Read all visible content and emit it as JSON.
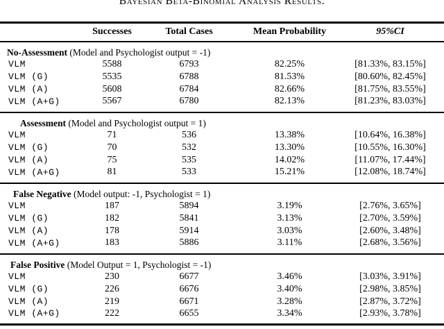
{
  "title": "Bayesian Beta-Binomial Analysis Results.",
  "columns": [
    "Successes",
    "Total Cases",
    "Mean Probability",
    "95%CI"
  ],
  "sections": [
    {
      "name": "No-Assessment",
      "condition": "(Model and Psychologist output = -1)",
      "rows": [
        {
          "model": "VLM",
          "successes": "5588",
          "total": "6793",
          "mean": "82.25%",
          "ci": "[81.33%, 83.15%]"
        },
        {
          "model": "VLM (G)",
          "successes": "5535",
          "total": "6788",
          "mean": "81.53%",
          "ci": "[80.60%, 82.45%]"
        },
        {
          "model": "VLM (A)",
          "successes": "5608",
          "total": "6784",
          "mean": "82.66%",
          "ci": "[81.75%, 83.55%]"
        },
        {
          "model": "VLM (A+G)",
          "successes": "5567",
          "total": "6780",
          "mean": "82.13%",
          "ci": "[81.23%, 83.03%]"
        }
      ]
    },
    {
      "name": "Assessment",
      "condition": "(Model and Psychologist output = 1)",
      "rows": [
        {
          "model": "VLM",
          "successes": "71",
          "total": "536",
          "mean": "13.38%",
          "ci": "[10.64%, 16.38%]"
        },
        {
          "model": "VLM (G)",
          "successes": "70",
          "total": "532",
          "mean": "13.30%",
          "ci": "[10.55%, 16.30%]"
        },
        {
          "model": "VLM (A)",
          "successes": "75",
          "total": "535",
          "mean": "14.02%",
          "ci": "[11.07%, 17.44%]"
        },
        {
          "model": "VLM (A+G)",
          "successes": "81",
          "total": "533",
          "mean": "15.21%",
          "ci": "[12.08%, 18.74%]"
        }
      ]
    },
    {
      "name": "False Negative",
      "condition": "(Model output: -1, Psychologist = 1)",
      "rows": [
        {
          "model": "VLM",
          "successes": "187",
          "total": "5894",
          "mean": "3.19%",
          "ci": "[2.76%, 3.65%]"
        },
        {
          "model": "VLM (G)",
          "successes": "182",
          "total": "5841",
          "mean": "3.13%",
          "ci": "[2.70%, 3.59%]"
        },
        {
          "model": "VLM (A)",
          "successes": "178",
          "total": "5914",
          "mean": "3.03%",
          "ci": "[2.60%, 3.48%]"
        },
        {
          "model": "VLM (A+G)",
          "successes": "183",
          "total": "5886",
          "mean": "3.11%",
          "ci": "[2.68%, 3.56%]"
        }
      ]
    },
    {
      "name": "False Positive",
      "condition": "(Model Output = 1, Psychologist = -1)",
      "rows": [
        {
          "model": "VLM",
          "successes": "230",
          "total": "6677",
          "mean": "3.46%",
          "ci": "[3.03%, 3.91%]"
        },
        {
          "model": "VLM (G)",
          "successes": "226",
          "total": "6676",
          "mean": "3.40%",
          "ci": "[2.98%, 3.85%]"
        },
        {
          "model": "VLM (A)",
          "successes": "219",
          "total": "6671",
          "mean": "3.28%",
          "ci": "[2.87%, 3.72%]"
        },
        {
          "model": "VLM (A+G)",
          "successes": "222",
          "total": "6655",
          "mean": "3.34%",
          "ci": "[2.93%, 3.78%]"
        }
      ]
    }
  ]
}
